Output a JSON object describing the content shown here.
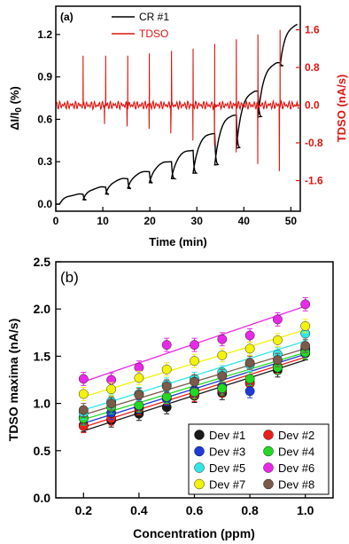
{
  "chart_data": [
    {
      "type": "line",
      "panel_label": "(a)",
      "xlabel": "Time (min)",
      "ylabel_left": "ΔI/I0 (%)",
      "ylabel_right": "TDSO (nA/s)",
      "xlim": [
        0,
        52
      ],
      "ylim_left": [
        -0.05,
        1.4
      ],
      "ylim_right": [
        -2.25,
        2.1
      ],
      "x_ticks": [
        0,
        10,
        20,
        30,
        40,
        50
      ],
      "y_left_ticks": [
        "0.0",
        "0.3",
        "0.6",
        "0.9",
        "1.2"
      ],
      "y_right_ticks": [
        "-1.6",
        "-0.8",
        "0.0",
        "0.8",
        "1.6"
      ],
      "colors": {
        "cr": "#000000",
        "tdso": "#e0140f"
      },
      "series": [
        {
          "name": "CR #1",
          "axis": "left",
          "cycles": [
            {
              "on": 0.8,
              "off": 5.8,
              "level": 0.07,
              "base": 0.0
            },
            {
              "on": 5.8,
              "off": 10.6,
              "level": 0.12,
              "base": 0.03
            },
            {
              "on": 10.6,
              "off": 15.3,
              "level": 0.18,
              "base": 0.07
            },
            {
              "on": 15.3,
              "off": 19.9,
              "level": 0.23,
              "base": 0.11
            },
            {
              "on": 19.9,
              "off": 24.6,
              "level": 0.3,
              "base": 0.15
            },
            {
              "on": 24.6,
              "off": 29.2,
              "level": 0.38,
              "base": 0.18
            },
            {
              "on": 29.2,
              "off": 33.8,
              "level": 0.5,
              "base": 0.22
            },
            {
              "on": 33.8,
              "off": 38.4,
              "level": 0.63,
              "base": 0.28
            },
            {
              "on": 38.4,
              "off": 43.0,
              "level": 0.8,
              "base": 0.4
            },
            {
              "on": 43.0,
              "off": 47.7,
              "level": 1.0,
              "base": 0.62
            },
            {
              "on": 47.7,
              "off": 52.0,
              "level": 1.27,
              "base": 0.98
            }
          ]
        },
        {
          "name": "TDSO",
          "axis": "right",
          "baseline": 0.0,
          "spikes": [
            {
              "t": 5.8,
              "up": 1.05,
              "down": -0.4
            },
            {
              "t": 10.6,
              "up": 1.05,
              "down": -0.45
            },
            {
              "t": 15.3,
              "up": 1.05,
              "down": -0.5
            },
            {
              "t": 19.9,
              "up": 1.1,
              "down": -0.6
            },
            {
              "t": 24.6,
              "up": 1.15,
              "down": -0.75
            },
            {
              "t": 29.2,
              "up": 1.2,
              "down": -0.85
            },
            {
              "t": 33.8,
              "up": 1.3,
              "down": -1.0
            },
            {
              "t": 38.4,
              "up": 1.4,
              "down": -1.25
            },
            {
              "t": 43.0,
              "up": 1.5,
              "down": -1.4
            },
            {
              "t": 47.7,
              "up": 1.6,
              "down": -1.75
            }
          ]
        }
      ],
      "legend": {
        "position": "top",
        "entries": [
          "CR #1",
          "TDSO"
        ]
      }
    },
    {
      "type": "scatter",
      "panel_label": "(b)",
      "xlabel": "Concentration (ppm)",
      "ylabel": "TDSO maxima (nA/s)",
      "xlim": [
        0.1,
        1.1
      ],
      "ylim": [
        0.0,
        2.5
      ],
      "x_ticks": [
        "0.2",
        "0.4",
        "0.6",
        "0.8",
        "1.0"
      ],
      "y_ticks": [
        "0.0",
        "0.5",
        "1.0",
        "1.5",
        "2.0",
        "2.5"
      ],
      "x": [
        0.2,
        0.3,
        0.4,
        0.5,
        0.6,
        0.7,
        0.8,
        0.9,
        1.0
      ],
      "series": [
        {
          "name": "Dev #1",
          "color": "#1a1a1a",
          "values": [
            0.77,
            0.82,
            0.89,
            0.96,
            1.08,
            1.11,
            1.22,
            1.35,
            1.53
          ],
          "fit": [
            0.71,
            1.46
          ]
        },
        {
          "name": "Dev #2",
          "color": "#e8201c",
          "values": [
            0.76,
            0.84,
            0.95,
            1.06,
            1.09,
            1.14,
            1.21,
            1.39,
            1.58
          ],
          "fit": [
            0.75,
            1.49
          ]
        },
        {
          "name": "Dev #3",
          "color": "#1e3ad8",
          "values": [
            0.85,
            0.9,
            0.97,
            1.05,
            1.14,
            1.18,
            1.13,
            1.38,
            1.56
          ],
          "fit": [
            0.79,
            1.52
          ]
        },
        {
          "name": "Dev #4",
          "color": "#22d822",
          "values": [
            0.84,
            0.96,
            0.98,
            1.07,
            1.12,
            1.16,
            1.26,
            1.38,
            1.54
          ],
          "fit": [
            0.83,
            1.54
          ]
        },
        {
          "name": "Dev #5",
          "color": "#33e6e6",
          "values": [
            0.9,
            1.02,
            1.1,
            1.2,
            1.26,
            1.33,
            1.41,
            1.52,
            1.74
          ],
          "fit": [
            0.93,
            1.66
          ]
        },
        {
          "name": "Dev #6",
          "color": "#e829e8",
          "values": [
            1.26,
            1.25,
            1.38,
            1.62,
            1.62,
            1.68,
            1.72,
            1.89,
            2.05
          ],
          "fit": [
            1.23,
            2.03
          ]
        },
        {
          "name": "Dev #7",
          "color": "#f2f20c",
          "values": [
            1.1,
            1.15,
            1.27,
            1.36,
            1.45,
            1.51,
            1.58,
            1.67,
            1.82
          ],
          "fit": [
            1.07,
            1.78
          ]
        },
        {
          "name": "Dev #8",
          "color": "#7a5a48",
          "values": [
            0.93,
            1.0,
            1.09,
            1.18,
            1.23,
            1.29,
            1.43,
            1.46,
            1.61
          ],
          "fit": [
            0.88,
            1.58
          ]
        }
      ],
      "error_bar": 0.07,
      "legend": {
        "position": "bottom-right",
        "columns": 2
      }
    }
  ]
}
